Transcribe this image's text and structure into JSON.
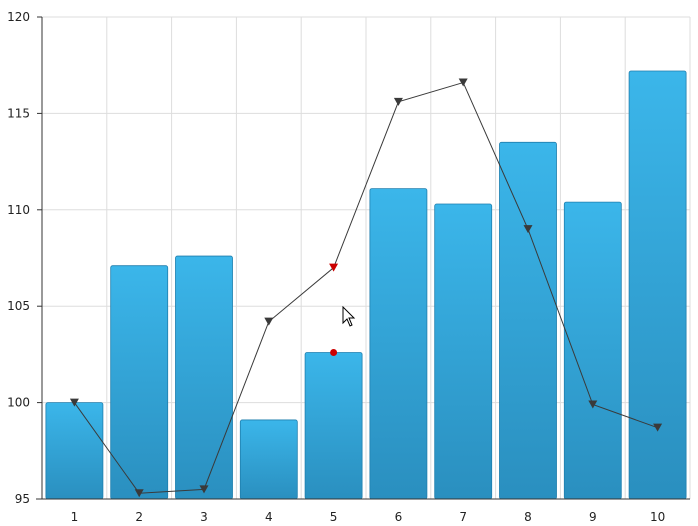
{
  "chart_data": {
    "type": "bar",
    "categories": [
      "1",
      "2",
      "3",
      "4",
      "5",
      "6",
      "7",
      "8",
      "9",
      "10"
    ],
    "series": [
      {
        "kind": "bar",
        "values": [
          100.0,
          107.1,
          107.6,
          99.1,
          102.6,
          111.1,
          110.3,
          113.5,
          110.4,
          117.2
        ]
      },
      {
        "kind": "line",
        "values": [
          100.0,
          95.3,
          95.5,
          104.2,
          107.0,
          115.6,
          116.6,
          109.0,
          99.9,
          98.7
        ]
      }
    ],
    "ylim": [
      95,
      120
    ],
    "yticks": [
      "95",
      "100",
      "105",
      "110",
      "115",
      "120"
    ],
    "grid": true,
    "highlight_index": 4,
    "title": "",
    "xlabel": "",
    "ylabel": "",
    "colors": {
      "bar_top": "#3bb6ea",
      "bar_bottom": "#2a8fbf",
      "bar_stroke": "#1f7fae",
      "line": "#3a3a3a",
      "marker": "#3a3a3a",
      "highlight": "#cc0000",
      "grid": "#dddddd",
      "axis": "#333333"
    }
  },
  "cursor": {
    "icon": "mouse-pointer-icon"
  }
}
